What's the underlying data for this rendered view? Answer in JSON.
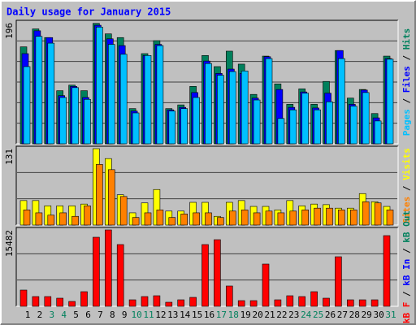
{
  "chart_data": [
    {
      "type": "bar",
      "title": "Daily usage for January 2015",
      "ylim": [
        0,
        196
      ],
      "yticks": [
        196
      ],
      "series": [
        {
          "name": "Hits",
          "color": "#00805c",
          "values": [
            157,
            186,
            172,
            86,
            95,
            86,
            195,
            178,
            172,
            57,
            146,
            167,
            57,
            63,
            93,
            143,
            125,
            150,
            129,
            80,
            142,
            97,
            64,
            89,
            64,
            101,
            151,
            74,
            88,
            49,
            142
          ]
        },
        {
          "name": "Files",
          "color": "#0000ff",
          "values": [
            146,
            183,
            172,
            78,
            93,
            75,
            192,
            170,
            159,
            53,
            143,
            161,
            55,
            59,
            83,
            134,
            114,
            121,
            114,
            74,
            141,
            88,
            59,
            84,
            58,
            82,
            151,
            64,
            87,
            42,
            138
          ]
        },
        {
          "name": "Pages",
          "color": "#00c0ff",
          "values": [
            125,
            174,
            163,
            75,
            91,
            72,
            189,
            161,
            145,
            50,
            143,
            159,
            53,
            57,
            75,
            130,
            111,
            117,
            118,
            71,
            138,
            41,
            55,
            82,
            55,
            68,
            138,
            61,
            83,
            37,
            137
          ]
        }
      ]
    },
    {
      "type": "bar",
      "ylim": [
        0,
        131
      ],
      "yticks": [
        131
      ],
      "series": [
        {
          "name": "Visits",
          "color": "#ffff00",
          "values": [
            42,
            42,
            33,
            33,
            33,
            36,
            131,
            114,
            52,
            21,
            38,
            61,
            24,
            24,
            39,
            39,
            15,
            39,
            42,
            32,
            32,
            26,
            42,
            33,
            36,
            35,
            29,
            29,
            54,
            40,
            32
          ]
        },
        {
          "name": "Sites",
          "color": "#ff8000",
          "values": [
            26,
            21,
            17,
            21,
            15,
            33,
            104,
            95,
            49,
            13,
            21,
            26,
            13,
            19,
            21,
            21,
            13,
            24,
            26,
            21,
            24,
            21,
            24,
            26,
            29,
            29,
            26,
            26,
            40,
            38,
            26
          ]
        }
      ]
    },
    {
      "type": "bar",
      "ylim": [
        0,
        15482
      ],
      "yticks": [
        15482
      ],
      "categories": [
        "1",
        "2",
        "3",
        "4",
        "5",
        "6",
        "7",
        "8",
        "9",
        "10",
        "11",
        "12",
        "13",
        "14",
        "15",
        "16",
        "17",
        "18",
        "19",
        "20",
        "21",
        "22",
        "23",
        "24",
        "25",
        "26",
        "27",
        "28",
        "29",
        "30",
        "31"
      ],
      "category_colors": [
        "#000000",
        "#000000",
        "#00805c",
        "#00805c",
        "#000000",
        "#000000",
        "#000000",
        "#000000",
        "#000000",
        "#00805c",
        "#00805c",
        "#000000",
        "#000000",
        "#000000",
        "#000000",
        "#000000",
        "#00805c",
        "#00805c",
        "#000000",
        "#000000",
        "#000000",
        "#000000",
        "#000000",
        "#00805c",
        "#00805c",
        "#000000",
        "#000000",
        "#000000",
        "#000000",
        "#000000",
        "#00805c"
      ],
      "series": [
        {
          "name": "kB F",
          "color": "#ff0000",
          "values": [
            3294,
            1976,
            1976,
            1647,
            988,
            2965,
            14000,
            15482,
            12518,
            1318,
            1976,
            2141,
            824,
            1318,
            1812,
            12518,
            13506,
            4118,
            1153,
            1153,
            8565,
            1318,
            2141,
            1976,
            2965,
            1647,
            10047,
            1318,
            1318,
            1318,
            14329
          ]
        }
      ],
      "other_labels": [
        {
          "text": "kB In",
          "color": "#0000ff"
        },
        {
          "text": "kB Out",
          "color": "#00805c"
        }
      ]
    }
  ]
}
